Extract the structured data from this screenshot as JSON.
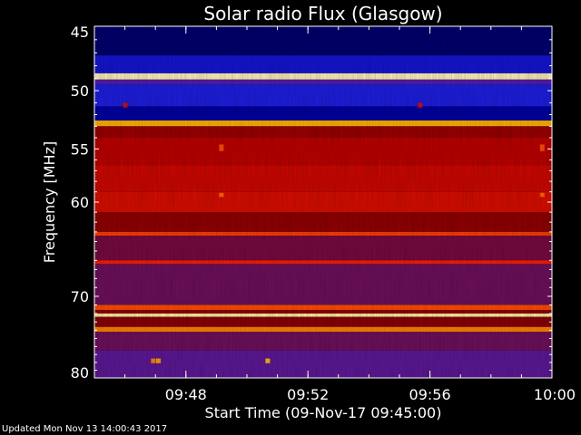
{
  "chart_data": {
    "type": "heatmap",
    "title": "Solar radio Flux (Glasgow)",
    "xlabel": "Start Time (09-Nov-17 09:45:00)",
    "ylabel": "Frequency [MHz]",
    "x_range": [
      "09:45",
      "10:00"
    ],
    "x_ticks": [
      "09:48",
      "09:52",
      "09:56",
      "10:00"
    ],
    "y_range": [
      45,
      80
    ],
    "y_scale": "log",
    "y_ticks": [
      45,
      50,
      55,
      60,
      70,
      80
    ],
    "colormap": [
      "#000020",
      "#0000b0",
      "#3030ff",
      "#5a1aa0",
      "#8a0000",
      "#c00000",
      "#ff2000",
      "#ff8000",
      "#ffd000",
      "#ffffff"
    ],
    "frequency_bands": [
      {
        "f_start": 45.0,
        "f_end": 47.2,
        "level": 0.06
      },
      {
        "f_start": 47.2,
        "f_end": 48.6,
        "level": 0.16
      },
      {
        "f_start": 48.6,
        "f_end": 49.1,
        "level": 0.97
      },
      {
        "f_start": 49.1,
        "f_end": 49.5,
        "level": 0.32
      },
      {
        "f_start": 49.5,
        "f_end": 51.3,
        "level": 0.18
      },
      {
        "f_start": 51.3,
        "f_end": 52.5,
        "level": 0.1
      },
      {
        "f_start": 52.5,
        "f_end": 53.0,
        "level": 0.85
      },
      {
        "f_start": 53.0,
        "f_end": 54.0,
        "level": 0.48
      },
      {
        "f_start": 54.0,
        "f_end": 56.5,
        "level": 0.55
      },
      {
        "f_start": 56.5,
        "f_end": 59.0,
        "level": 0.58
      },
      {
        "f_start": 59.0,
        "f_end": 61.0,
        "level": 0.6
      },
      {
        "f_start": 61.0,
        "f_end": 63.0,
        "level": 0.46
      },
      {
        "f_start": 63.0,
        "f_end": 63.4,
        "level": 0.7
      },
      {
        "f_start": 63.4,
        "f_end": 66.0,
        "level": 0.4
      },
      {
        "f_start": 66.0,
        "f_end": 66.4,
        "level": 0.66
      },
      {
        "f_start": 66.4,
        "f_end": 71.0,
        "level": 0.38
      },
      {
        "f_start": 71.0,
        "f_end": 71.6,
        "level": 0.72
      },
      {
        "f_start": 71.6,
        "f_end": 72.0,
        "level": 0.46
      },
      {
        "f_start": 72.0,
        "f_end": 72.4,
        "level": 0.96
      },
      {
        "f_start": 72.4,
        "f_end": 73.6,
        "level": 0.44
      },
      {
        "f_start": 73.6,
        "f_end": 74.2,
        "level": 0.78
      },
      {
        "f_start": 74.2,
        "f_end": 76.5,
        "level": 0.38
      },
      {
        "f_start": 76.5,
        "f_end": 80.0,
        "level": 0.34
      }
    ],
    "bursts": [
      {
        "time": "09:49:09",
        "f_start": 54.6,
        "f_end": 55.2,
        "level": 0.72
      },
      {
        "time": "09:49:09",
        "f_start": 59.1,
        "f_end": 59.5,
        "level": 0.75
      },
      {
        "time": "09:59:40",
        "f_start": 54.6,
        "f_end": 55.2,
        "level": 0.72
      },
      {
        "time": "09:59:40",
        "f_start": 59.1,
        "f_end": 59.5,
        "level": 0.75
      },
      {
        "time": "09:46:00",
        "f_start": 51.0,
        "f_end": 51.4,
        "level": 0.6
      },
      {
        "time": "09:55:40",
        "f_start": 51.0,
        "f_end": 51.4,
        "level": 0.6
      },
      {
        "time": "09:47:05",
        "f_start": 77.5,
        "f_end": 78.1,
        "level": 0.82
      },
      {
        "time": "09:50:40",
        "f_start": 77.5,
        "f_end": 78.1,
        "level": 0.86
      },
      {
        "time": "09:46:55",
        "f_start": 77.5,
        "f_end": 78.1,
        "level": 0.78
      }
    ]
  },
  "footer": {
    "updated": "Updated Mon Nov 13 14:00:43 2017"
  }
}
